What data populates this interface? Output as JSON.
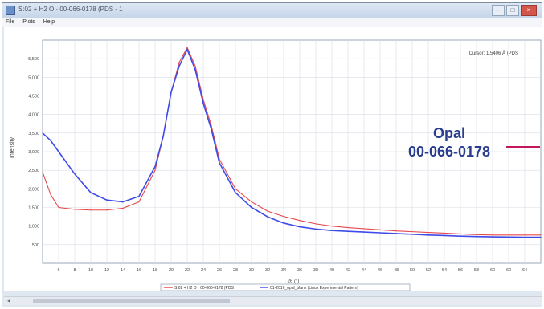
{
  "window": {
    "title": "S:02 + H2 O · 00-066-0178 (PDS - 1",
    "controls": [
      "–",
      "□",
      "×"
    ]
  },
  "menubar": {
    "items": [
      "File",
      "Plots",
      "Help"
    ]
  },
  "plot": {
    "wavelength_label": "Cursor: 1.5406 Å (PDS",
    "ylabel": "Intensity",
    "xlabel": "2θ (°)",
    "legend": [
      "S:02 + H2 O · 00-066-0178 (PDS",
      "01-2016_opal_blank (Linux Experimental Pattern)"
    ],
    "colors": {
      "reference": "#e5484d",
      "experimental": "#3f4be8"
    }
  },
  "callout": {
    "title": "Opal",
    "code": "00-066-0178"
  },
  "chart_data": {
    "type": "line",
    "xlabel": "2θ (°)",
    "ylabel": "Intensity",
    "x_ticks": [
      "6",
      "8",
      "10",
      "12",
      "14",
      "16",
      "18",
      "20",
      "22",
      "24",
      "26",
      "28",
      "30",
      "32",
      "34",
      "36",
      "38",
      "40",
      "42",
      "44",
      "46",
      "48",
      "50",
      "52",
      "54",
      "56",
      "58",
      "60",
      "62",
      "64"
    ],
    "y_ticks": [
      "500",
      "1,000",
      "1,500",
      "2,000",
      "2,500",
      "3,000",
      "3,500",
      "4,000",
      "4,500",
      "5,000",
      "5,500"
    ],
    "xlim": [
      4,
      66
    ],
    "ylim": [
      0,
      6000
    ],
    "grid": true,
    "legend_position": "bottom",
    "series": [
      {
        "name": "S:02 + H2 O · 00-066-0178 (PDS",
        "x": [
          4,
          5,
          6,
          8,
          10,
          12,
          14,
          16,
          18,
          19,
          20,
          21,
          22,
          23,
          24,
          25,
          26,
          28,
          30,
          32,
          34,
          36,
          38,
          40,
          42,
          44,
          46,
          48,
          50,
          52,
          54,
          56,
          58,
          60,
          62,
          64,
          66
        ],
        "values": [
          2450,
          1850,
          1500,
          1450,
          1430,
          1430,
          1480,
          1650,
          2500,
          3400,
          4600,
          5400,
          5800,
          5300,
          4400,
          3700,
          2800,
          2000,
          1650,
          1400,
          1260,
          1150,
          1060,
          1000,
          960,
          930,
          900,
          870,
          850,
          830,
          810,
          790,
          770,
          760,
          760,
          760,
          760
        ]
      },
      {
        "name": "01-2016_opal_blank (Linux Experimental Pattern)",
        "x": [
          4,
          5,
          6,
          8,
          10,
          12,
          14,
          16,
          18,
          19,
          20,
          21,
          22,
          23,
          24,
          25,
          26,
          28,
          30,
          32,
          34,
          36,
          38,
          40,
          42,
          44,
          46,
          48,
          50,
          52,
          54,
          56,
          58,
          60,
          62,
          64,
          66
        ],
        "values": [
          3500,
          3300,
          3000,
          2400,
          1900,
          1700,
          1650,
          1800,
          2600,
          3400,
          4600,
          5300,
          5750,
          5200,
          4300,
          3600,
          2700,
          1900,
          1500,
          1250,
          1080,
          980,
          920,
          880,
          860,
          840,
          820,
          800,
          780,
          760,
          745,
          730,
          720,
          710,
          705,
          700,
          700
        ]
      }
    ]
  }
}
